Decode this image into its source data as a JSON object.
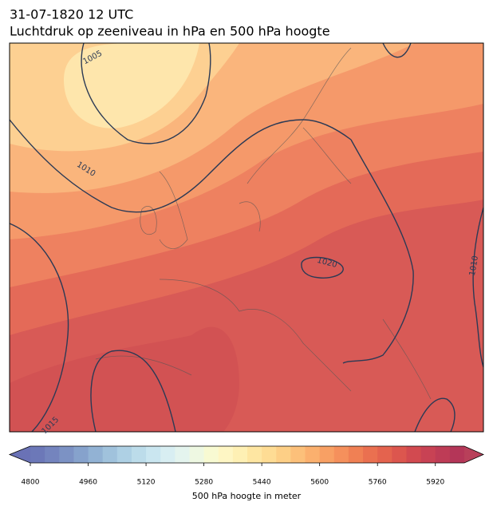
{
  "header": {
    "line1": "31-07-1820 12 UTC",
    "line2": "Luchtdruk op zeeniveau in hPa en 500 hPa hoogte"
  },
  "contour_labels": [
    "1005",
    "1010",
    "1020",
    "1010",
    "1015"
  ],
  "colorbar": {
    "label": "500 hPa hoogte in meter",
    "range": [
      4800,
      6000
    ],
    "ticks": [
      4800,
      4960,
      5120,
      5280,
      5440,
      5600,
      5760,
      5920
    ],
    "under_color": "#6a72b6",
    "over_color": "#b8405a",
    "colors": [
      "#6c78b8",
      "#7484be",
      "#7c92c4",
      "#86a2cc",
      "#92b2d4",
      "#a0c2dc",
      "#aed0e4",
      "#bcdcea",
      "#cae6f0",
      "#d8eef2",
      "#e4f4ee",
      "#eef8e2",
      "#f8fad2",
      "#fef6c4",
      "#fef0b4",
      "#fee6a2",
      "#fedc94",
      "#fdcf86",
      "#fcc07a",
      "#fbb06e",
      "#f8a064",
      "#f5905c",
      "#f08054",
      "#ea7050",
      "#e4634e",
      "#dc564e",
      "#d24a50",
      "#c84254",
      "#be3c56",
      "#b43658"
    ]
  }
}
